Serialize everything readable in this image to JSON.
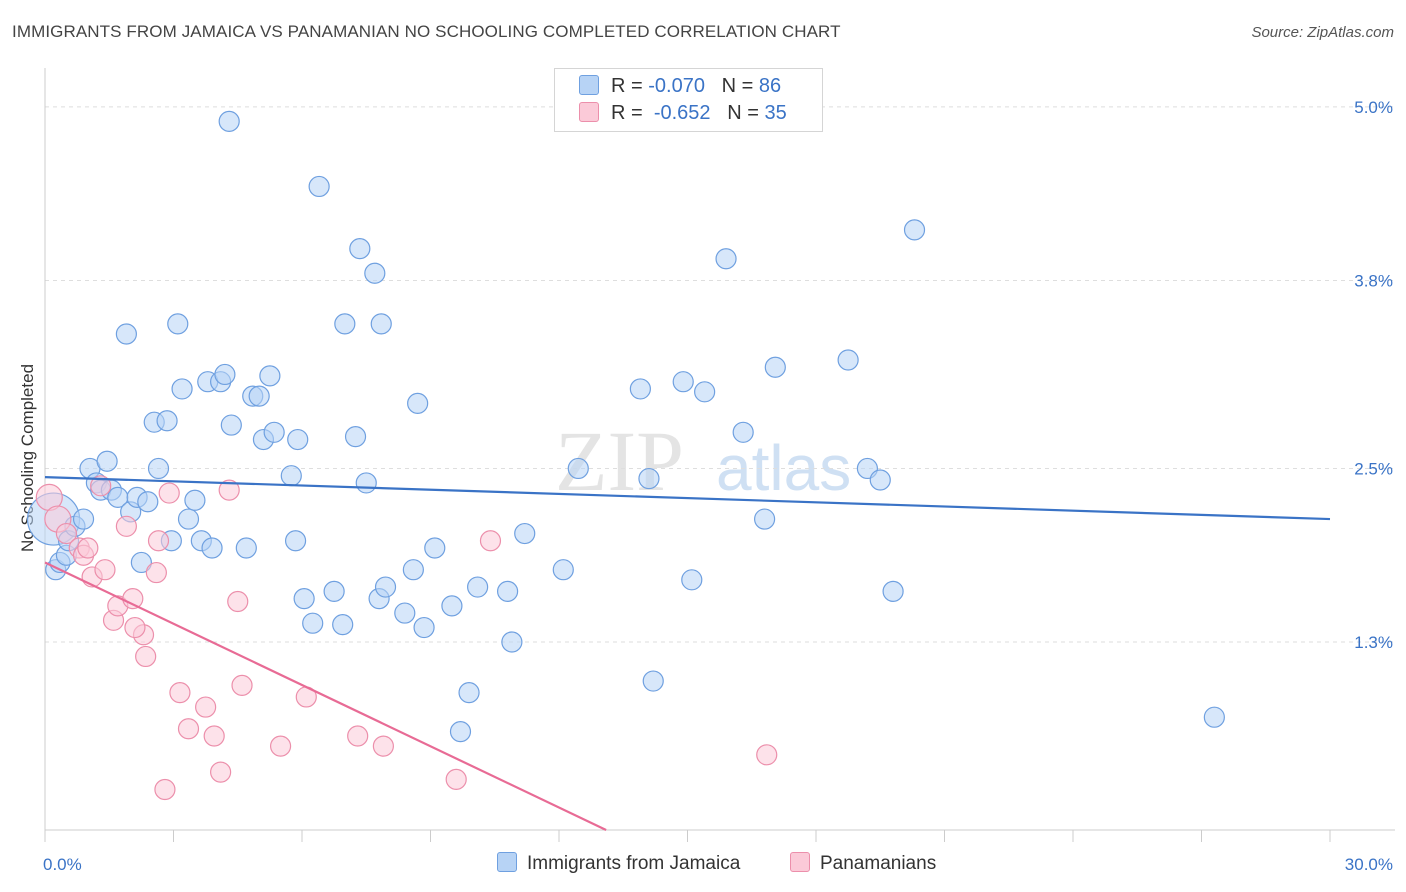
{
  "title": "IMMIGRANTS FROM JAMAICA VS PANAMANIAN NO SCHOOLING COMPLETED CORRELATION CHART",
  "source": "Source: ZipAtlas.com",
  "watermark": {
    "zip": "ZIP",
    "atlas": "atlas"
  },
  "legend": {
    "r_label": "R =",
    "n_label": "N =",
    "rows": [
      {
        "r": "-0.070",
        "n": "86",
        "color": "#b7d3f5",
        "border": "#6fa0e0"
      },
      {
        "r": "-0.652",
        "n": "35",
        "color": "#fbcad8",
        "border": "#ec8fab"
      }
    ]
  },
  "bottom_legend": [
    {
      "label": "Immigrants from Jamaica",
      "color": "#b7d3f5",
      "border": "#6fa0e0"
    },
    {
      "label": "Panamanians",
      "color": "#fbcad8",
      "border": "#ec8fab"
    }
  ],
  "chart_data": {
    "type": "scatter",
    "title": "IMMIGRANTS FROM JAMAICA VS PANAMANIAN NO SCHOOLING COMPLETED CORRELATION CHART",
    "ylabel": "No Schooling Completed",
    "xlabel": "",
    "xlim": [
      0,
      30
    ],
    "ylim": [
      0,
      5.2
    ],
    "x_tick_labels": [
      {
        "value": 0,
        "label": "0.0%"
      },
      {
        "value": 30,
        "label": "30.0%"
      }
    ],
    "y_tick_labels": [
      {
        "value": 1.3,
        "label": "1.3%"
      },
      {
        "value": 2.5,
        "label": "2.5%"
      },
      {
        "value": 3.8,
        "label": "3.8%"
      },
      {
        "value": 5.0,
        "label": "5.0%"
      }
    ],
    "series": [
      {
        "name": "Immigrants from Jamaica",
        "color": "#6fa0e0",
        "fill": "#b7d3f5",
        "trend": {
          "x": [
            0,
            30
          ],
          "y": [
            2.44,
            2.15
          ],
          "color": "#3a73c6"
        },
        "points": [
          [
            0.2,
            2.15,
            26
          ],
          [
            0.25,
            1.8,
            10
          ],
          [
            0.35,
            1.85,
            10
          ],
          [
            0.5,
            1.9,
            10
          ],
          [
            0.55,
            2.0,
            10
          ],
          [
            0.7,
            2.1,
            10
          ],
          [
            0.9,
            2.15,
            10
          ],
          [
            1.05,
            2.5,
            10
          ],
          [
            1.2,
            2.4,
            10
          ],
          [
            1.3,
            2.35,
            10
          ],
          [
            1.45,
            2.55,
            10
          ],
          [
            1.55,
            2.35,
            10
          ],
          [
            1.7,
            2.3,
            10
          ],
          [
            1.9,
            3.43,
            10
          ],
          [
            2.0,
            2.2,
            10
          ],
          [
            2.15,
            2.3,
            10
          ],
          [
            2.25,
            1.85,
            10
          ],
          [
            2.4,
            2.27,
            10
          ],
          [
            2.55,
            2.82,
            10
          ],
          [
            2.65,
            2.5,
            10
          ],
          [
            2.85,
            2.83,
            10
          ],
          [
            2.95,
            2.0,
            10
          ],
          [
            3.1,
            3.5,
            10
          ],
          [
            3.2,
            3.05,
            10
          ],
          [
            3.35,
            2.15,
            10
          ],
          [
            3.5,
            2.28,
            10
          ],
          [
            3.65,
            2.0,
            10
          ],
          [
            3.8,
            3.1,
            10
          ],
          [
            3.9,
            1.95,
            10
          ],
          [
            4.1,
            3.1,
            10
          ],
          [
            4.2,
            3.15,
            10
          ],
          [
            4.3,
            4.9,
            10
          ],
          [
            4.35,
            2.8,
            10
          ],
          [
            4.7,
            1.95,
            10
          ],
          [
            4.85,
            3.0,
            10
          ],
          [
            5.0,
            3.0,
            10
          ],
          [
            5.1,
            2.7,
            10
          ],
          [
            5.25,
            3.14,
            10
          ],
          [
            5.35,
            2.75,
            10
          ],
          [
            5.75,
            2.45,
            10
          ],
          [
            5.85,
            2.0,
            10
          ],
          [
            5.9,
            2.7,
            10
          ],
          [
            6.05,
            1.6,
            10
          ],
          [
            6.25,
            1.43,
            10
          ],
          [
            6.4,
            4.45,
            10
          ],
          [
            6.75,
            1.65,
            10
          ],
          [
            6.95,
            1.42,
            10
          ],
          [
            7.0,
            3.5,
            10
          ],
          [
            7.25,
            2.72,
            10
          ],
          [
            7.35,
            4.02,
            10
          ],
          [
            7.5,
            2.4,
            10
          ],
          [
            7.7,
            3.85,
            10
          ],
          [
            7.8,
            1.6,
            10
          ],
          [
            7.85,
            3.5,
            10
          ],
          [
            7.95,
            1.68,
            10
          ],
          [
            8.4,
            1.5,
            10
          ],
          [
            8.6,
            1.8,
            10
          ],
          [
            8.7,
            2.95,
            10
          ],
          [
            8.85,
            1.4,
            10
          ],
          [
            9.1,
            1.95,
            10
          ],
          [
            9.5,
            1.55,
            10
          ],
          [
            9.7,
            0.68,
            10
          ],
          [
            9.9,
            0.95,
            10
          ],
          [
            10.1,
            1.68,
            10
          ],
          [
            10.8,
            1.65,
            10
          ],
          [
            10.9,
            1.3,
            10
          ],
          [
            11.2,
            2.05,
            10
          ],
          [
            12.1,
            1.8,
            10
          ],
          [
            12.45,
            2.5,
            10
          ],
          [
            13.9,
            3.05,
            10
          ],
          [
            14.1,
            2.43,
            10
          ],
          [
            14.2,
            1.03,
            10
          ],
          [
            14.9,
            3.1,
            10
          ],
          [
            15.1,
            1.73,
            10
          ],
          [
            15.4,
            3.03,
            10
          ],
          [
            15.9,
            3.95,
            10
          ],
          [
            16.3,
            2.75,
            10
          ],
          [
            16.8,
            2.15,
            10
          ],
          [
            17.05,
            3.2,
            10
          ],
          [
            18.75,
            3.25,
            10
          ],
          [
            19.2,
            2.5,
            10
          ],
          [
            19.5,
            2.42,
            10
          ],
          [
            19.8,
            1.65,
            10
          ],
          [
            20.3,
            4.15,
            10
          ],
          [
            27.3,
            0.78,
            10
          ]
        ]
      },
      {
        "name": "Panamanians",
        "color": "#ec8fab",
        "fill": "#fbcad8",
        "trend": {
          "x": [
            0,
            13.1
          ],
          "y": [
            1.85,
            0
          ],
          "color": "#e86b95"
        },
        "points": [
          [
            0.1,
            2.3,
            13
          ],
          [
            0.3,
            2.15,
            13
          ],
          [
            0.5,
            2.05,
            10
          ],
          [
            0.8,
            1.95,
            10
          ],
          [
            0.9,
            1.9,
            10
          ],
          [
            1.0,
            1.95,
            10
          ],
          [
            1.1,
            1.75,
            10
          ],
          [
            1.3,
            2.38,
            10
          ],
          [
            1.4,
            1.8,
            10
          ],
          [
            1.6,
            1.45,
            10
          ],
          [
            1.7,
            1.55,
            10
          ],
          [
            1.9,
            2.1,
            10
          ],
          [
            2.05,
            1.6,
            10
          ],
          [
            2.3,
            1.35,
            10
          ],
          [
            2.35,
            1.2,
            10
          ],
          [
            2.6,
            1.78,
            10
          ],
          [
            2.65,
            2.0,
            10
          ],
          [
            2.8,
            0.28,
            10
          ],
          [
            2.9,
            2.33,
            10
          ],
          [
            3.15,
            0.95,
            10
          ],
          [
            3.35,
            0.7,
            10
          ],
          [
            3.75,
            0.85,
            10
          ],
          [
            3.95,
            0.65,
            10
          ],
          [
            4.1,
            0.4,
            10
          ],
          [
            4.3,
            2.35,
            10
          ],
          [
            4.5,
            1.58,
            10
          ],
          [
            4.6,
            1.0,
            10
          ],
          [
            5.5,
            0.58,
            10
          ],
          [
            6.1,
            0.92,
            10
          ],
          [
            7.3,
            0.65,
            10
          ],
          [
            7.9,
            0.58,
            10
          ],
          [
            9.6,
            0.35,
            10
          ],
          [
            10.4,
            2.0,
            10
          ],
          [
            16.85,
            0.52,
            10
          ],
          [
            2.1,
            1.4,
            10
          ]
        ]
      }
    ]
  }
}
